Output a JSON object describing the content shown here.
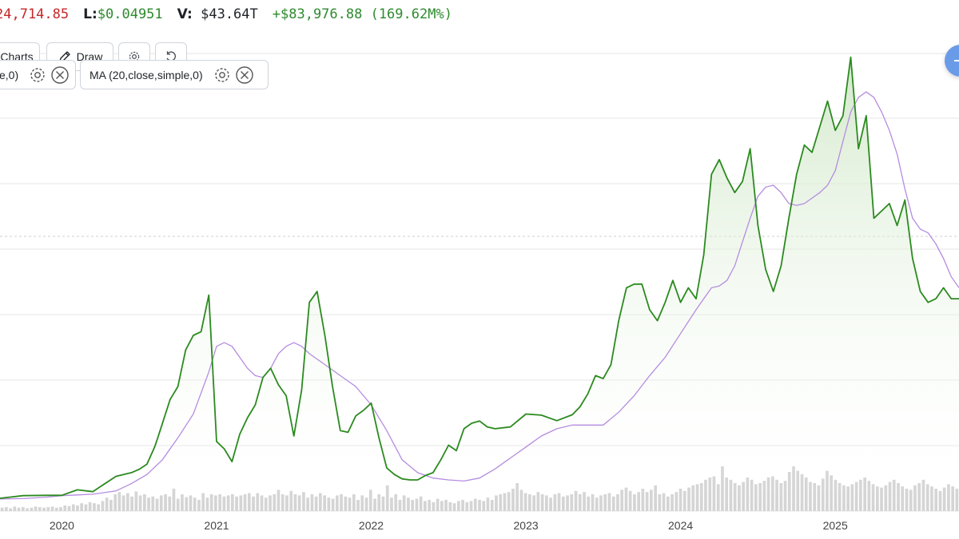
{
  "header": {
    "high_value": "24,714.85",
    "low_label": "L:",
    "low_value": "$0.04951",
    "volume_label": "V:",
    "volume_value": "$43.64T",
    "change_value": "+$83,976.88 (169.62M%)"
  },
  "toolbar": {
    "charts_label": "Charts",
    "draw_label": "Draw"
  },
  "indicators": [
    {
      "label": "e,0)"
    },
    {
      "label": "MA (20,close,simple,0)"
    }
  ],
  "colors": {
    "price_line": "#2b8a1f",
    "ma_line": "#b58ce0",
    "area_fill_top": "#cfe7c6",
    "volume_bar": "#d4d4d4",
    "grid": "#e6e6e6",
    "negative": "#c62828",
    "positive": "#2e8b2e",
    "fab": "#6a9be8"
  },
  "icons": [
    "pencil-icon",
    "gear-icon",
    "reset-icon",
    "close-icon"
  ],
  "chart_data": {
    "type": "line",
    "title": "",
    "xlabel": "",
    "ylabel": "",
    "x_tick_labels": [
      "2020",
      "2021",
      "2022",
      "2023",
      "2024",
      "2025"
    ],
    "x_range": [
      2019.6,
      2025.8
    ],
    "y_range": [
      0,
      125000
    ],
    "y_tick_labels_visible": false,
    "grid": true,
    "series": [
      {
        "kind": "price",
        "x": [
          2019.6,
          2019.75,
          2019.9,
          2020.0,
          2020.1,
          2020.2,
          2020.35,
          2020.45,
          2020.5,
          2020.55,
          2020.6,
          2020.62,
          2020.7,
          2020.75,
          2020.8,
          2020.85,
          2020.9,
          2020.95,
          2021.0,
          2021.05,
          2021.1,
          2021.15,
          2021.2,
          2021.25,
          2021.3,
          2021.35,
          2021.4,
          2021.45,
          2021.5,
          2021.55,
          2021.6,
          2021.65,
          2021.7,
          2021.75,
          2021.8,
          2021.85,
          2021.9,
          2021.95,
          2022.0,
          2022.05,
          2022.1,
          2022.15,
          2022.2,
          2022.25,
          2022.3,
          2022.35,
          2022.4,
          2022.45,
          2022.5,
          2022.55,
          2022.6,
          2022.65,
          2022.7,
          2022.75,
          2022.8,
          2022.9,
          2023.0,
          2023.1,
          2023.2,
          2023.3,
          2023.35,
          2023.4,
          2023.45,
          2023.5,
          2023.55,
          2023.6,
          2023.65,
          2023.7,
          2023.75,
          2023.8,
          2023.85,
          2023.9,
          2023.95,
          2024.0,
          2024.05,
          2024.1,
          2024.15,
          2024.2,
          2024.25,
          2024.3,
          2024.35,
          2024.4,
          2024.45,
          2024.5,
          2024.55,
          2024.6,
          2024.65,
          2024.7,
          2024.75,
          2024.8,
          2024.85,
          2024.9,
          2024.95,
          2025.0,
          2025.05,
          2025.1,
          2025.15,
          2025.2,
          2025.25,
          2025.3,
          2025.35,
          2025.4,
          2025.45,
          2025.5,
          2025.55,
          2025.6,
          2025.65,
          2025.7,
          2025.75,
          2025.8
        ],
        "y": [
          3500,
          4200,
          4300,
          4300,
          5800,
          5300,
          9500,
          10500,
          11400,
          12800,
          17500,
          20000,
          30500,
          34000,
          44000,
          48000,
          49000,
          59000,
          19000,
          17000,
          13500,
          21000,
          25500,
          29000,
          36500,
          39000,
          34500,
          31500,
          20500,
          33000,
          57000,
          60000,
          48000,
          34000,
          22000,
          21500,
          26000,
          27500,
          29500,
          20000,
          11800,
          10000,
          8800,
          8500,
          8500,
          9700,
          10500,
          14000,
          18000,
          16500,
          22500,
          24000,
          24600,
          23000,
          22500,
          23000,
          26500,
          26200,
          24700,
          26300,
          28500,
          32000,
          37000,
          36200,
          40000,
          52000,
          61000,
          62000,
          62000,
          55000,
          52000,
          57000,
          63000,
          57000,
          61000,
          58000,
          70000,
          92000,
          96000,
          91000,
          87000,
          90000,
          99000,
          78000,
          66000,
          60000,
          67000,
          80000,
          92000,
          100000,
          98000,
          105000,
          112000,
          104000,
          108000,
          124000,
          99000,
          108000,
          80000,
          82000,
          84000,
          78000,
          85000,
          69000,
          60000,
          57000,
          58000,
          61000,
          58000,
          58000
        ]
      },
      {
        "kind": "moving_average",
        "x": [
          2019.6,
          2019.75,
          2019.9,
          2020.0,
          2020.1,
          2020.2,
          2020.35,
          2020.45,
          2020.55,
          2020.65,
          2020.75,
          2020.85,
          2020.95,
          2021.0,
          2021.05,
          2021.1,
          2021.15,
          2021.2,
          2021.25,
          2021.3,
          2021.35,
          2021.4,
          2021.45,
          2021.5,
          2021.55,
          2021.6,
          2021.7,
          2021.8,
          2021.9,
          2022.0,
          2022.1,
          2022.2,
          2022.3,
          2022.4,
          2022.5,
          2022.6,
          2022.7,
          2022.8,
          2022.9,
          2023.0,
          2023.1,
          2023.2,
          2023.3,
          2023.4,
          2023.5,
          2023.6,
          2023.7,
          2023.8,
          2023.9,
          2024.0,
          2024.1,
          2024.15,
          2024.2,
          2024.25,
          2024.3,
          2024.35,
          2024.4,
          2024.45,
          2024.5,
          2024.55,
          2024.6,
          2024.65,
          2024.7,
          2024.75,
          2024.8,
          2024.85,
          2024.9,
          2024.95,
          2025.0,
          2025.05,
          2025.1,
          2025.15,
          2025.2,
          2025.25,
          2025.3,
          2025.35,
          2025.4,
          2025.45,
          2025.5,
          2025.55,
          2025.6,
          2025.65,
          2025.7,
          2025.75,
          2025.8
        ],
        "y": [
          3300,
          3400,
          3800,
          4200,
          4400,
          4600,
          5500,
          7500,
          10000,
          14000,
          20000,
          26500,
          38000,
          45000,
          46000,
          45000,
          42000,
          39000,
          37000,
          36500,
          39000,
          43000,
          45000,
          46000,
          45000,
          43000,
          40000,
          37000,
          34000,
          29000,
          22000,
          14000,
          10500,
          9000,
          8500,
          8200,
          9000,
          11500,
          14500,
          17500,
          20500,
          22500,
          23500,
          23500,
          23500,
          27000,
          31500,
          37000,
          42000,
          48500,
          55000,
          58000,
          61000,
          61500,
          63000,
          67000,
          73500,
          80000,
          86000,
          88500,
          89000,
          87000,
          84000,
          83500,
          84000,
          85500,
          87000,
          89000,
          93000,
          101000,
          109000,
          113000,
          114500,
          113000,
          109000,
          104000,
          97500,
          88000,
          80000,
          77000,
          76000,
          73000,
          69000,
          64000,
          61000
        ]
      }
    ],
    "volume": {
      "x_range": [
        2019.6,
        2025.8
      ],
      "relative_heights": [
        0.06,
        0.07,
        0.05,
        0.08,
        0.06,
        0.07,
        0.05,
        0.06,
        0.08,
        0.07,
        0.06,
        0.07,
        0.08,
        0.06,
        0.07,
        0.1,
        0.09,
        0.12,
        0.1,
        0.14,
        0.12,
        0.16,
        0.14,
        0.12,
        0.18,
        0.24,
        0.2,
        0.3,
        0.34,
        0.28,
        0.32,
        0.26,
        0.35,
        0.28,
        0.3,
        0.24,
        0.26,
        0.22,
        0.28,
        0.3,
        0.26,
        0.4,
        0.22,
        0.3,
        0.25,
        0.28,
        0.24,
        0.2,
        0.32,
        0.24,
        0.3,
        0.28,
        0.3,
        0.26,
        0.28,
        0.3,
        0.26,
        0.28,
        0.3,
        0.32,
        0.26,
        0.32,
        0.28,
        0.24,
        0.28,
        0.3,
        0.38,
        0.3,
        0.28,
        0.36,
        0.3,
        0.28,
        0.34,
        0.24,
        0.3,
        0.26,
        0.32,
        0.28,
        0.24,
        0.22,
        0.28,
        0.3,
        0.26,
        0.24,
        0.3,
        0.2,
        0.28,
        0.24,
        0.38,
        0.22,
        0.3,
        0.26,
        0.46,
        0.24,
        0.3,
        0.2,
        0.28,
        0.24,
        0.2,
        0.22,
        0.26,
        0.18,
        0.2,
        0.16,
        0.22,
        0.18,
        0.2,
        0.16,
        0.14,
        0.18,
        0.2,
        0.16,
        0.18,
        0.22,
        0.2,
        0.18,
        0.24,
        0.2,
        0.28,
        0.3,
        0.32,
        0.34,
        0.4,
        0.5,
        0.38,
        0.32,
        0.3,
        0.28,
        0.34,
        0.3,
        0.28,
        0.24,
        0.3,
        0.32,
        0.26,
        0.28,
        0.3,
        0.36,
        0.3,
        0.34,
        0.26,
        0.3,
        0.24,
        0.28,
        0.3,
        0.32,
        0.26,
        0.3,
        0.38,
        0.42,
        0.36,
        0.3,
        0.34,
        0.4,
        0.34,
        0.38,
        0.46,
        0.3,
        0.32,
        0.26,
        0.3,
        0.34,
        0.4,
        0.36,
        0.42,
        0.46,
        0.48,
        0.5,
        0.56,
        0.6,
        0.62,
        0.48,
        0.8,
        0.6,
        0.56,
        0.5,
        0.46,
        0.52,
        0.6,
        0.56,
        0.48,
        0.5,
        0.54,
        0.6,
        0.62,
        0.56,
        0.5,
        0.54,
        0.7,
        0.8,
        0.72,
        0.66,
        0.6,
        0.52,
        0.5,
        0.46,
        0.58,
        0.72,
        0.64,
        0.56,
        0.5,
        0.46,
        0.44,
        0.48,
        0.52,
        0.56,
        0.6,
        0.54,
        0.48,
        0.44,
        0.42,
        0.46,
        0.52,
        0.56,
        0.5,
        0.44,
        0.4,
        0.38,
        0.46,
        0.5,
        0.56,
        0.48,
        0.44,
        0.4,
        0.36,
        0.42,
        0.48,
        0.44,
        0.4
      ]
    }
  }
}
